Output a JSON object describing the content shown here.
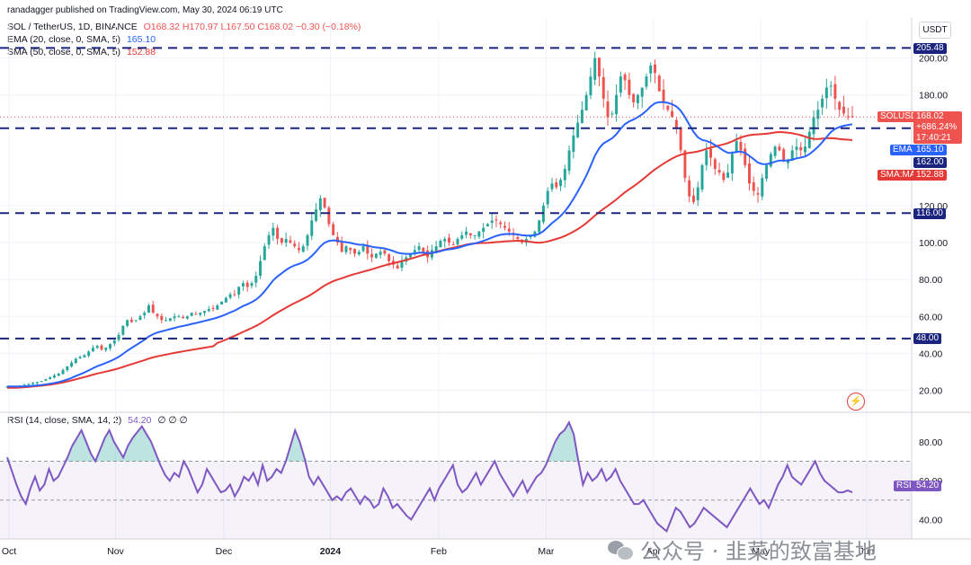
{
  "header": {
    "publisher": "ranadagger published on TradingView.com, May 30, 2024 06:19 UTC",
    "symbol_line_title": "SOL / TetherUS, 1D, BINANCE",
    "ohlc": {
      "o": "O168.32",
      "h": "H170.97",
      "l": "L167.50",
      "c": "C168.02",
      "chg": "−0.30 (−0.18%)"
    },
    "ema_label": "EMA (20, close, 0, SMA, 5)",
    "ema_value": "165.10",
    "sma_label": "SMA (50, close, 0, SMA, 5)",
    "sma_value": "152.88",
    "rsi_label": "RSI (14, close, SMA, 14, 2)",
    "rsi_value": "54.20",
    "rsi_extra": "∅ ∅ ∅"
  },
  "currency_badge": "USDT",
  "price_tags": {
    "symbol": "SOLUSDT",
    "price": "168.02",
    "pct": "+686.24%",
    "countdown": "17:40:21",
    "ema_tag": "EMA",
    "ema_val": "165.10",
    "level_162": "162.00",
    "sma_tag": "SMA:MA",
    "sma_val": "152.88",
    "rsi_tag": "RSI",
    "rsi_val": "54.20"
  },
  "levels": [
    "205.48",
    "116.00",
    "48.00"
  ],
  "watermark": "公众号 · 韭菜的致富基地",
  "colors": {
    "up": "#26a69a",
    "down": "#ef5350",
    "ema": "#2962ff",
    "sma": "#e53935",
    "rsi": "#7e57c2",
    "level": "#1a237e"
  },
  "chart_data": [
    {
      "type": "candlestick",
      "title": "SOL / TetherUS, 1D, BINANCE",
      "x_ticks": [
        "Oct",
        "Nov",
        "Dec",
        "2024",
        "Feb",
        "Mar",
        "Apr",
        "May",
        "Jun"
      ],
      "y_ticks": [
        "20.00",
        "40.00",
        "60.00",
        "80.00",
        "100.00",
        "120.00",
        "180.00",
        "200.00"
      ],
      "ylim": [
        10,
        212
      ],
      "horizontal_levels": [
        205.48,
        162.0,
        116.0,
        48.0
      ],
      "series": [
        {
          "name": "SOLUSDT",
          "type": "candlestick",
          "close": [
            22,
            22,
            22,
            22.5,
            23,
            23.5,
            24,
            24.5,
            25,
            26,
            27,
            28,
            29,
            31,
            33,
            35,
            37,
            38,
            39,
            41,
            43,
            44,
            42,
            43,
            45,
            47,
            50,
            55,
            58,
            57,
            58,
            60,
            62,
            66,
            62,
            60,
            58,
            58,
            59,
            60,
            60,
            59,
            60,
            62,
            61,
            62,
            63,
            64,
            64,
            66,
            68,
            70,
            72,
            72,
            76,
            78,
            76,
            78,
            82,
            90,
            98,
            104,
            108,
            102,
            100,
            102,
            100,
            98,
            96,
            98,
            104,
            112,
            118,
            124,
            119,
            110,
            104,
            100,
            95,
            98,
            96,
            94,
            95,
            98,
            94,
            92,
            94,
            95,
            94,
            90,
            88,
            86,
            90,
            92,
            94,
            96,
            98,
            95,
            92,
            96,
            98,
            101,
            102,
            100,
            99,
            102,
            104,
            106,
            104,
            104,
            106,
            108,
            110,
            112,
            112,
            110,
            108,
            106,
            104,
            102,
            100,
            102,
            104,
            106,
            112,
            120,
            128,
            132,
            130,
            134,
            140,
            150,
            158,
            165,
            172,
            180,
            190,
            200,
            190,
            178,
            168,
            170,
            180,
            190,
            188,
            180,
            176,
            180,
            184,
            190,
            196,
            192,
            182,
            176,
            172,
            168,
            162,
            150,
            135,
            125,
            122,
            130,
            142,
            150,
            146,
            140,
            138,
            134,
            138,
            148,
            155,
            150,
            142,
            132,
            128,
            126,
            135,
            142,
            148,
            152,
            150,
            144,
            145,
            150,
            152,
            150,
            152,
            160,
            168,
            172,
            178,
            184,
            185,
            178,
            172,
            170,
            168,
            168
          ]
        },
        {
          "name": "EMA (20, close, 0, SMA, 5)",
          "value": 165.1
        },
        {
          "name": "SMA (50, close, 0, SMA, 5)",
          "value": 152.88
        }
      ]
    },
    {
      "type": "line",
      "title": "RSI (14, close, SMA, 14, 2)",
      "y_ticks": [
        "40.00",
        "60.00",
        "80.00"
      ],
      "ylim": [
        30,
        92
      ],
      "bands": [
        30,
        70
      ],
      "series": [
        {
          "name": "RSI",
          "values": [
            72,
            65,
            58,
            52,
            48,
            56,
            62,
            55,
            58,
            66,
            60,
            62,
            67,
            72,
            78,
            82,
            86,
            80,
            74,
            70,
            76,
            82,
            86,
            80,
            76,
            72,
            78,
            82,
            85,
            88,
            84,
            80,
            74,
            68,
            63,
            60,
            64,
            62,
            70,
            66,
            60,
            54,
            58,
            66,
            62,
            58,
            54,
            55,
            58,
            52,
            56,
            62,
            60,
            64,
            58,
            68,
            60,
            62,
            66,
            64,
            70,
            78,
            86,
            80,
            72,
            62,
            58,
            62,
            58,
            54,
            50,
            52,
            50,
            54,
            56,
            52,
            48,
            52,
            50,
            46,
            48,
            56,
            52,
            46,
            48,
            45,
            42,
            40,
            44,
            48,
            52,
            56,
            50,
            56,
            60,
            64,
            68,
            58,
            54,
            56,
            60,
            64,
            58,
            62,
            66,
            70,
            64,
            60,
            56,
            52,
            56,
            60,
            54,
            58,
            62,
            64,
            68,
            74,
            80,
            84,
            86,
            90,
            84,
            70,
            58,
            64,
            60,
            62,
            66,
            60,
            62,
            66,
            60,
            56,
            52,
            48,
            48,
            50,
            46,
            42,
            38,
            36,
            34,
            40,
            46,
            44,
            40,
            36,
            38,
            42,
            46,
            44,
            42,
            40,
            38,
            36,
            40,
            44,
            48,
            52,
            56,
            52,
            48,
            50,
            46,
            52,
            58,
            62,
            68,
            62,
            60,
            58,
            62,
            66,
            70,
            64,
            60,
            58,
            56,
            54,
            54,
            55,
            54
          ]
        }
      ]
    }
  ]
}
